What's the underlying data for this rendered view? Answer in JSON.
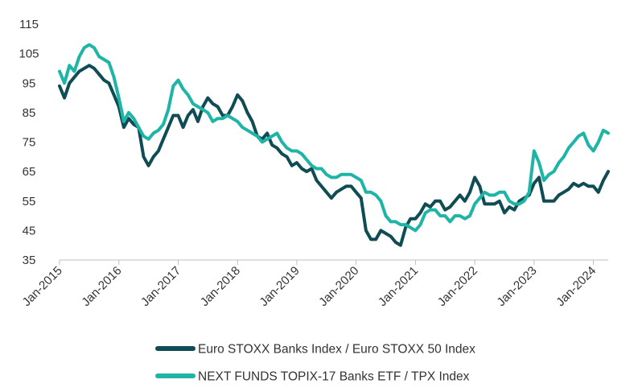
{
  "chart_data": {
    "type": "line",
    "title": "",
    "xlabel": "",
    "ylabel": "",
    "ylim": [
      35,
      115
    ],
    "yticks": [
      35,
      45,
      55,
      65,
      75,
      85,
      95,
      105,
      115
    ],
    "xlim": [
      "2015-01",
      "2024-04"
    ],
    "xticks": [
      "Jan-2015",
      "Jan-2016",
      "Jan-2017",
      "Jan-2018",
      "Jan-2019",
      "Jan-2020",
      "Jan-2021",
      "Jan-2022",
      "Jan-2023",
      "Jan-2024"
    ],
    "grid": false,
    "legend_position": "bottom-center",
    "series": [
      {
        "name": "Euro STOXX Banks Index / Euro STOXX 50 Index",
        "color": "#0f4c54",
        "points": [
          [
            "2015-01",
            94
          ],
          [
            "2015-02",
            90
          ],
          [
            "2015-03",
            95
          ],
          [
            "2015-04",
            97
          ],
          [
            "2015-05",
            99
          ],
          [
            "2015-06",
            100
          ],
          [
            "2015-07",
            101
          ],
          [
            "2015-08",
            100
          ],
          [
            "2015-09",
            98
          ],
          [
            "2015-10",
            96
          ],
          [
            "2015-11",
            95
          ],
          [
            "2015-12",
            91
          ],
          [
            "2016-01",
            87
          ],
          [
            "2016-02",
            80
          ],
          [
            "2016-03",
            83
          ],
          [
            "2016-04",
            81
          ],
          [
            "2016-05",
            80
          ],
          [
            "2016-06",
            70
          ],
          [
            "2016-07",
            67
          ],
          [
            "2016-08",
            70
          ],
          [
            "2016-09",
            72
          ],
          [
            "2016-10",
            76
          ],
          [
            "2016-11",
            80
          ],
          [
            "2016-12",
            84
          ],
          [
            "2017-01",
            84
          ],
          [
            "2017-02",
            80
          ],
          [
            "2017-03",
            84
          ],
          [
            "2017-04",
            86
          ],
          [
            "2017-05",
            82
          ],
          [
            "2017-06",
            87
          ],
          [
            "2017-07",
            90
          ],
          [
            "2017-08",
            88
          ],
          [
            "2017-09",
            87
          ],
          [
            "2017-10",
            84
          ],
          [
            "2017-11",
            84
          ],
          [
            "2017-12",
            87
          ],
          [
            "2018-01",
            91
          ],
          [
            "2018-02",
            89
          ],
          [
            "2018-03",
            85
          ],
          [
            "2018-04",
            82
          ],
          [
            "2018-05",
            77
          ],
          [
            "2018-06",
            76
          ],
          [
            "2018-07",
            78
          ],
          [
            "2018-08",
            74
          ],
          [
            "2018-09",
            73
          ],
          [
            "2018-10",
            71
          ],
          [
            "2018-11",
            70
          ],
          [
            "2018-12",
            67
          ],
          [
            "2019-01",
            68
          ],
          [
            "2019-02",
            66
          ],
          [
            "2019-03",
            65
          ],
          [
            "2019-04",
            66
          ],
          [
            "2019-05",
            62
          ],
          [
            "2019-06",
            60
          ],
          [
            "2019-07",
            58
          ],
          [
            "2019-08",
            56
          ],
          [
            "2019-09",
            58
          ],
          [
            "2019-10",
            59
          ],
          [
            "2019-11",
            60
          ],
          [
            "2019-12",
            60
          ],
          [
            "2020-01",
            58
          ],
          [
            "2020-02",
            56
          ],
          [
            "2020-03",
            45
          ],
          [
            "2020-04",
            42
          ],
          [
            "2020-05",
            42
          ],
          [
            "2020-06",
            45
          ],
          [
            "2020-07",
            44
          ],
          [
            "2020-08",
            43
          ],
          [
            "2020-09",
            41
          ],
          [
            "2020-10",
            40
          ],
          [
            "2020-11",
            46
          ],
          [
            "2020-12",
            49
          ],
          [
            "2021-01",
            49
          ],
          [
            "2021-02",
            51
          ],
          [
            "2021-03",
            54
          ],
          [
            "2021-04",
            53
          ],
          [
            "2021-05",
            55
          ],
          [
            "2021-06",
            55
          ],
          [
            "2021-07",
            52
          ],
          [
            "2021-08",
            53
          ],
          [
            "2021-09",
            55
          ],
          [
            "2021-10",
            57
          ],
          [
            "2021-11",
            55
          ],
          [
            "2021-12",
            58
          ],
          [
            "2022-01",
            63
          ],
          [
            "2022-02",
            60
          ],
          [
            "2022-03",
            54
          ],
          [
            "2022-04",
            54
          ],
          [
            "2022-05",
            54
          ],
          [
            "2022-06",
            55
          ],
          [
            "2022-07",
            51
          ],
          [
            "2022-08",
            53
          ],
          [
            "2022-09",
            52
          ],
          [
            "2022-10",
            55
          ],
          [
            "2022-11",
            56
          ],
          [
            "2022-12",
            57
          ],
          [
            "2023-01",
            61
          ],
          [
            "2023-02",
            63
          ],
          [
            "2023-03",
            55
          ],
          [
            "2023-04",
            55
          ],
          [
            "2023-05",
            55
          ],
          [
            "2023-06",
            57
          ],
          [
            "2023-07",
            58
          ],
          [
            "2023-08",
            59
          ],
          [
            "2023-09",
            61
          ],
          [
            "2023-10",
            60
          ],
          [
            "2023-11",
            61
          ],
          [
            "2023-12",
            60
          ],
          [
            "2024-01",
            60
          ],
          [
            "2024-02",
            58
          ],
          [
            "2024-03",
            62
          ],
          [
            "2024-04",
            65
          ]
        ]
      },
      {
        "name": "NEXT FUNDS TOPIX-17 Banks ETF / TPX Index",
        "color": "#1fb5a6",
        "points": [
          [
            "2015-01",
            99
          ],
          [
            "2015-02",
            95
          ],
          [
            "2015-03",
            101
          ],
          [
            "2015-04",
            99
          ],
          [
            "2015-05",
            104
          ],
          [
            "2015-06",
            107
          ],
          [
            "2015-07",
            108
          ],
          [
            "2015-08",
            107
          ],
          [
            "2015-09",
            104
          ],
          [
            "2015-10",
            103
          ],
          [
            "2015-11",
            102
          ],
          [
            "2015-12",
            97
          ],
          [
            "2016-01",
            90
          ],
          [
            "2016-02",
            82
          ],
          [
            "2016-03",
            85
          ],
          [
            "2016-04",
            83
          ],
          [
            "2016-05",
            80
          ],
          [
            "2016-06",
            77
          ],
          [
            "2016-07",
            76
          ],
          [
            "2016-08",
            78
          ],
          [
            "2016-09",
            79
          ],
          [
            "2016-10",
            81
          ],
          [
            "2016-11",
            86
          ],
          [
            "2016-12",
            94
          ],
          [
            "2017-01",
            96
          ],
          [
            "2017-02",
            93
          ],
          [
            "2017-03",
            91
          ],
          [
            "2017-04",
            88
          ],
          [
            "2017-05",
            87
          ],
          [
            "2017-06",
            86
          ],
          [
            "2017-07",
            85
          ],
          [
            "2017-08",
            82
          ],
          [
            "2017-09",
            83
          ],
          [
            "2017-10",
            83
          ],
          [
            "2017-11",
            84
          ],
          [
            "2017-12",
            83
          ],
          [
            "2018-01",
            82
          ],
          [
            "2018-02",
            80
          ],
          [
            "2018-03",
            79
          ],
          [
            "2018-04",
            78
          ],
          [
            "2018-05",
            77
          ],
          [
            "2018-06",
            75
          ],
          [
            "2018-07",
            76
          ],
          [
            "2018-08",
            77
          ],
          [
            "2018-09",
            78
          ],
          [
            "2018-10",
            75
          ],
          [
            "2018-11",
            73
          ],
          [
            "2018-12",
            72
          ],
          [
            "2019-01",
            72
          ],
          [
            "2019-02",
            71
          ],
          [
            "2019-03",
            69
          ],
          [
            "2019-04",
            67
          ],
          [
            "2019-05",
            66
          ],
          [
            "2019-06",
            66
          ],
          [
            "2019-07",
            64
          ],
          [
            "2019-08",
            63
          ],
          [
            "2019-09",
            63
          ],
          [
            "2019-10",
            64
          ],
          [
            "2019-11",
            64
          ],
          [
            "2019-12",
            64
          ],
          [
            "2020-01",
            63
          ],
          [
            "2020-02",
            62
          ],
          [
            "2020-03",
            58
          ],
          [
            "2020-04",
            58
          ],
          [
            "2020-05",
            57
          ],
          [
            "2020-06",
            55
          ],
          [
            "2020-07",
            50
          ],
          [
            "2020-08",
            48
          ],
          [
            "2020-09",
            48
          ],
          [
            "2020-10",
            47
          ],
          [
            "2020-11",
            47
          ],
          [
            "2020-12",
            46
          ],
          [
            "2021-01",
            45
          ],
          [
            "2021-02",
            47
          ],
          [
            "2021-03",
            51
          ],
          [
            "2021-04",
            52
          ],
          [
            "2021-05",
            52
          ],
          [
            "2021-06",
            50
          ],
          [
            "2021-07",
            50
          ],
          [
            "2021-08",
            48
          ],
          [
            "2021-09",
            50
          ],
          [
            "2021-10",
            50
          ],
          [
            "2021-11",
            49
          ],
          [
            "2021-12",
            50
          ],
          [
            "2022-01",
            54
          ],
          [
            "2022-02",
            56
          ],
          [
            "2022-03",
            58
          ],
          [
            "2022-04",
            57
          ],
          [
            "2022-05",
            57
          ],
          [
            "2022-06",
            58
          ],
          [
            "2022-07",
            58
          ],
          [
            "2022-08",
            55
          ],
          [
            "2022-09",
            54
          ],
          [
            "2022-10",
            54
          ],
          [
            "2022-11",
            55
          ],
          [
            "2022-12",
            58
          ],
          [
            "2023-01",
            72
          ],
          [
            "2023-02",
            68
          ],
          [
            "2023-03",
            62
          ],
          [
            "2023-04",
            64
          ],
          [
            "2023-05",
            65
          ],
          [
            "2023-06",
            68
          ],
          [
            "2023-07",
            70
          ],
          [
            "2023-08",
            73
          ],
          [
            "2023-09",
            75
          ],
          [
            "2023-10",
            77
          ],
          [
            "2023-11",
            78
          ],
          [
            "2023-12",
            74
          ],
          [
            "2024-01",
            72
          ],
          [
            "2024-02",
            75
          ],
          [
            "2024-03",
            79
          ],
          [
            "2024-04",
            78
          ]
        ]
      }
    ]
  }
}
